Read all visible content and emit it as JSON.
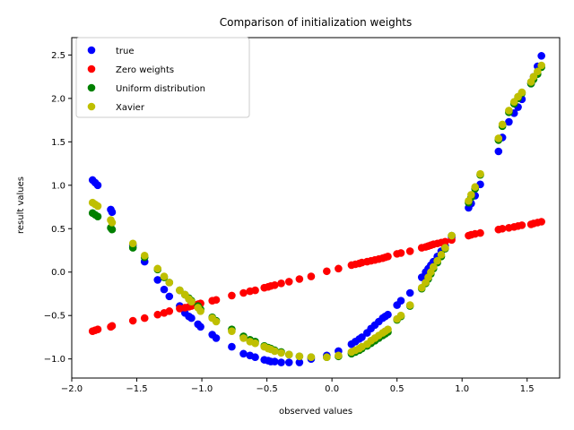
{
  "chart_data": {
    "type": "scatter",
    "title": "Comparison of initialization weights",
    "xlabel": "observed values",
    "ylabel": "result values",
    "xlim": [
      -2.0,
      1.75
    ],
    "ylim": [
      -1.22,
      2.7
    ],
    "xticks": [
      -2.0,
      -1.5,
      -1.0,
      -0.5,
      0.0,
      0.5,
      1.0,
      1.5
    ],
    "xtick_labels": [
      "−2.0",
      "−1.5",
      "−1.0",
      "−0.5",
      "0.0",
      "0.5",
      "1.0",
      "1.5"
    ],
    "yticks": [
      -1.0,
      -0.5,
      0.0,
      0.5,
      1.0,
      1.5,
      2.0,
      2.5
    ],
    "ytick_labels": [
      "−1.0",
      "−0.5",
      "0.0",
      "0.5",
      "1.0",
      "1.5",
      "2.0",
      "2.5"
    ],
    "legend_position": "top-left",
    "grid": false,
    "x": [
      -1.84,
      -1.82,
      -1.8,
      -1.7,
      -1.69,
      -1.53,
      -1.44,
      -1.34,
      -1.29,
      -1.25,
      -1.17,
      -1.13,
      -1.1,
      -1.08,
      -1.03,
      -1.01,
      -0.92,
      -0.89,
      -0.77,
      -0.68,
      -0.63,
      -0.59,
      -0.52,
      -0.49,
      -0.47,
      -0.44,
      -0.39,
      -0.33,
      -0.25,
      -0.16,
      -0.04,
      0.05,
      0.15,
      0.18,
      0.21,
      0.23,
      0.27,
      0.3,
      0.33,
      0.36,
      0.39,
      0.41,
      0.43,
      0.5,
      0.53,
      0.6,
      0.69,
      0.72,
      0.74,
      0.76,
      0.78,
      0.81,
      0.84,
      0.87,
      0.92,
      1.05,
      1.07,
      1.1,
      1.14,
      1.28,
      1.31,
      1.36,
      1.4,
      1.43,
      1.46,
      1.53,
      1.55,
      1.58,
      1.61
    ],
    "series": [
      {
        "name": "true",
        "color": "#0000ff",
        "y": [
          1.06,
          1.03,
          1.0,
          0.72,
          0.69,
          0.31,
          0.12,
          -0.09,
          -0.2,
          -0.28,
          -0.39,
          -0.47,
          -0.51,
          -0.53,
          -0.6,
          -0.63,
          -0.72,
          -0.76,
          -0.86,
          -0.94,
          -0.96,
          -0.98,
          -1.01,
          -1.02,
          -1.03,
          -1.03,
          -1.04,
          -1.04,
          -1.04,
          -1.0,
          -0.96,
          -0.91,
          -0.83,
          -0.8,
          -0.77,
          -0.75,
          -0.7,
          -0.65,
          -0.61,
          -0.57,
          -0.53,
          -0.51,
          -0.49,
          -0.38,
          -0.33,
          -0.24,
          -0.06,
          0.0,
          0.04,
          0.08,
          0.12,
          0.18,
          0.24,
          0.3,
          0.4,
          0.74,
          0.79,
          0.88,
          1.01,
          1.39,
          1.55,
          1.73,
          1.83,
          1.9,
          1.99,
          2.17,
          2.25,
          2.37,
          2.49
        ]
      },
      {
        "name": "Zero weights",
        "color": "#ff0000",
        "y": [
          -0.68,
          -0.67,
          -0.66,
          -0.63,
          -0.62,
          -0.56,
          -0.53,
          -0.49,
          -0.47,
          -0.45,
          -0.42,
          -0.41,
          -0.4,
          -0.39,
          -0.37,
          -0.36,
          -0.33,
          -0.32,
          -0.27,
          -0.24,
          -0.22,
          -0.21,
          -0.18,
          -0.17,
          -0.16,
          -0.15,
          -0.13,
          -0.11,
          -0.08,
          -0.05,
          0.01,
          0.04,
          0.08,
          0.09,
          0.1,
          0.11,
          0.12,
          0.13,
          0.14,
          0.15,
          0.16,
          0.17,
          0.18,
          0.21,
          0.22,
          0.24,
          0.28,
          0.29,
          0.3,
          0.31,
          0.32,
          0.33,
          0.34,
          0.35,
          0.37,
          0.42,
          0.43,
          0.44,
          0.45,
          0.49,
          0.5,
          0.51,
          0.52,
          0.53,
          0.54,
          0.55,
          0.56,
          0.57,
          0.58
        ]
      },
      {
        "name": "Uniform distribution",
        "color": "#008000",
        "y": [
          0.68,
          0.66,
          0.64,
          0.51,
          0.49,
          0.28,
          0.17,
          0.03,
          -0.06,
          -0.12,
          -0.21,
          -0.26,
          -0.3,
          -0.33,
          -0.39,
          -0.43,
          -0.52,
          -0.56,
          -0.66,
          -0.74,
          -0.78,
          -0.8,
          -0.85,
          -0.87,
          -0.88,
          -0.9,
          -0.92,
          -0.95,
          -0.97,
          -0.98,
          -0.98,
          -0.97,
          -0.94,
          -0.92,
          -0.9,
          -0.88,
          -0.85,
          -0.82,
          -0.79,
          -0.76,
          -0.73,
          -0.71,
          -0.69,
          -0.55,
          -0.51,
          -0.39,
          -0.19,
          -0.13,
          -0.08,
          -0.02,
          0.04,
          0.11,
          0.18,
          0.27,
          0.42,
          0.8,
          0.86,
          0.96,
          1.12,
          1.52,
          1.68,
          1.84,
          1.94,
          2.0,
          2.06,
          2.17,
          2.22,
          2.28,
          2.36
        ]
      },
      {
        "name": "Xavier",
        "color": "#bfbf00",
        "y": [
          0.8,
          0.78,
          0.76,
          0.6,
          0.57,
          0.33,
          0.19,
          0.04,
          -0.05,
          -0.12,
          -0.21,
          -0.26,
          -0.31,
          -0.34,
          -0.41,
          -0.45,
          -0.53,
          -0.57,
          -0.68,
          -0.76,
          -0.8,
          -0.82,
          -0.86,
          -0.88,
          -0.89,
          -0.91,
          -0.93,
          -0.95,
          -0.97,
          -0.98,
          -0.98,
          -0.96,
          -0.92,
          -0.9,
          -0.88,
          -0.86,
          -0.83,
          -0.79,
          -0.76,
          -0.73,
          -0.7,
          -0.68,
          -0.66,
          -0.54,
          -0.5,
          -0.38,
          -0.18,
          -0.12,
          -0.06,
          0.0,
          0.06,
          0.13,
          0.2,
          0.28,
          0.42,
          0.82,
          0.89,
          0.98,
          1.13,
          1.54,
          1.7,
          1.86,
          1.96,
          2.02,
          2.07,
          2.19,
          2.25,
          2.31,
          2.38
        ]
      }
    ]
  }
}
